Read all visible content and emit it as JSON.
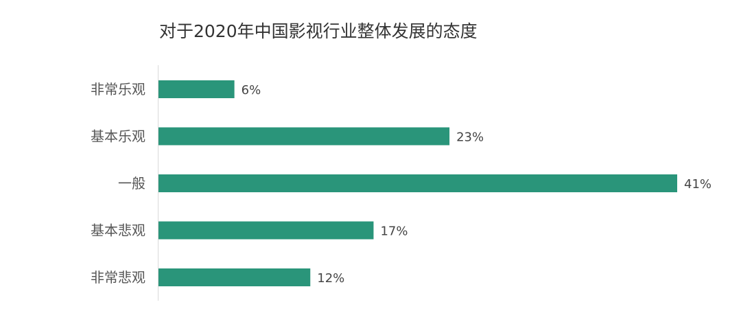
{
  "chart_data": {
    "type": "bar",
    "orientation": "horizontal",
    "title": "对于2020年中国影视行业整体发展的态度",
    "categories": [
      "非常乐观",
      "基本乐观",
      "一般",
      "基本悲观",
      "非常悲观"
    ],
    "values": [
      6,
      23,
      41,
      17,
      12
    ],
    "value_labels": [
      "6%",
      "23%",
      "41%",
      "17%",
      "12%"
    ],
    "unit": "%",
    "xlim": [
      0,
      41
    ],
    "grid": false,
    "legend": "none",
    "bar_color": "#2A957A",
    "axis_color": "#D9D9D9"
  }
}
